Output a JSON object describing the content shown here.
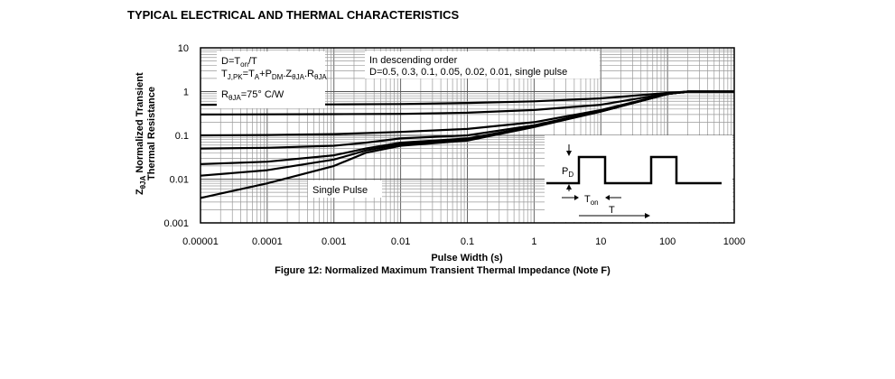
{
  "header": {
    "title": "TYPICAL ELECTRICAL AND THERMAL CHARACTERISTICS"
  },
  "chart_data": {
    "type": "line",
    "title": "",
    "caption": "Figure 12: Normalized Maximum Transient Thermal Impedance (Note F)",
    "xlabel": "Pulse Width (s)",
    "ylabel": {
      "symbol_main": "Z",
      "symbol_sub": "θJA",
      "line1": " Normalized Transient",
      "line2": "Thermal Resistance"
    },
    "x_scale": "log",
    "y_scale": "log",
    "xlim": [
      1e-05,
      1000
    ],
    "ylim": [
      0.001,
      10
    ],
    "grid": true,
    "x_ticks": [
      {
        "value": 1e-05,
        "label": "0.00001"
      },
      {
        "value": 0.0001,
        "label": "0.0001"
      },
      {
        "value": 0.001,
        "label": "0.001"
      },
      {
        "value": 0.01,
        "label": "0.01"
      },
      {
        "value": 0.1,
        "label": "0.1"
      },
      {
        "value": 1,
        "label": "1"
      },
      {
        "value": 10,
        "label": "10"
      },
      {
        "value": 100,
        "label": "100"
      },
      {
        "value": 1000,
        "label": "1000"
      }
    ],
    "y_ticks": [
      {
        "value": 10,
        "label": "10"
      },
      {
        "value": 1,
        "label": "1"
      },
      {
        "value": 0.1,
        "label": "0.1"
      },
      {
        "value": 0.01,
        "label": "0.01"
      },
      {
        "value": 0.001,
        "label": "0.001"
      }
    ],
    "annotations": {
      "box1": {
        "line1": "D=T",
        "line1_sub": "on",
        "line1_tail": "/T",
        "line2": "T",
        "line2_sub": "J,PK",
        "line2_tail": "=T",
        "line2_sub2": "A",
        "line2_tail2": "+P",
        "line2_sub3": "DM",
        "line2_tail3": ".Z",
        "line2_sub4": "θJA",
        "line2_tail4": ".R",
        "line2_sub5": "θJA",
        "line3": "R",
        "line3_sub": "θJA",
        "line3_tail": "=75°  C/W"
      },
      "box2": {
        "line1": "In descending order",
        "line2": "D=0.5, 0.3, 0.1, 0.05, 0.02, 0.01, single pulse"
      },
      "single_pulse": "Single Pulse",
      "inset": {
        "pd_main": "P",
        "pd_sub": "D",
        "ton_main": "T",
        "ton_sub": "on",
        "t_label": "T"
      }
    },
    "series": [
      {
        "values": [
          [
            1e-05,
            0.5
          ],
          [
            0.001,
            0.51
          ],
          [
            0.01,
            0.52
          ],
          [
            0.1,
            0.55
          ],
          [
            1,
            0.6
          ],
          [
            10,
            0.7
          ],
          [
            100,
            0.93
          ],
          [
            200,
            1
          ],
          [
            1000,
            1
          ]
        ]
      },
      {
        "values": [
          [
            1e-05,
            0.3
          ],
          [
            0.001,
            0.305
          ],
          [
            0.01,
            0.31
          ],
          [
            0.1,
            0.33
          ],
          [
            1,
            0.38
          ],
          [
            10,
            0.5
          ],
          [
            100,
            0.9
          ],
          [
            200,
            1
          ],
          [
            1000,
            1
          ]
        ]
      },
      {
        "values": [
          [
            1e-05,
            0.1
          ],
          [
            0.0001,
            0.102
          ],
          [
            0.001,
            0.107
          ],
          [
            0.01,
            0.12
          ],
          [
            0.1,
            0.14
          ],
          [
            1,
            0.2
          ],
          [
            10,
            0.38
          ],
          [
            100,
            0.88
          ],
          [
            200,
            1
          ],
          [
            1000,
            1
          ]
        ]
      },
      {
        "values": [
          [
            1e-05,
            0.05
          ],
          [
            0.0001,
            0.052
          ],
          [
            0.001,
            0.058
          ],
          [
            0.003,
            0.068
          ],
          [
            0.01,
            0.085
          ],
          [
            0.1,
            0.1
          ],
          [
            1,
            0.17
          ],
          [
            10,
            0.36
          ],
          [
            100,
            0.88
          ],
          [
            200,
            1
          ],
          [
            1000,
            1
          ]
        ]
      },
      {
        "values": [
          [
            1e-05,
            0.022
          ],
          [
            0.0001,
            0.025
          ],
          [
            0.001,
            0.035
          ],
          [
            0.003,
            0.05
          ],
          [
            0.01,
            0.068
          ],
          [
            0.1,
            0.085
          ],
          [
            1,
            0.16
          ],
          [
            10,
            0.35
          ],
          [
            100,
            0.88
          ],
          [
            200,
            1
          ],
          [
            1000,
            1
          ]
        ]
      },
      {
        "values": [
          [
            1e-05,
            0.012
          ],
          [
            0.0001,
            0.016
          ],
          [
            0.001,
            0.028
          ],
          [
            0.003,
            0.045
          ],
          [
            0.01,
            0.063
          ],
          [
            0.1,
            0.08
          ],
          [
            1,
            0.16
          ],
          [
            10,
            0.35
          ],
          [
            100,
            0.88
          ],
          [
            200,
            1
          ],
          [
            1000,
            1
          ]
        ]
      },
      {
        "values": [
          [
            1e-05,
            0.0037
          ],
          [
            0.0001,
            0.008
          ],
          [
            0.001,
            0.02
          ],
          [
            0.003,
            0.04
          ],
          [
            0.01,
            0.058
          ],
          [
            0.1,
            0.076
          ],
          [
            1,
            0.155
          ],
          [
            10,
            0.35
          ],
          [
            100,
            0.88
          ],
          [
            200,
            1
          ],
          [
            1000,
            1
          ]
        ]
      }
    ]
  }
}
